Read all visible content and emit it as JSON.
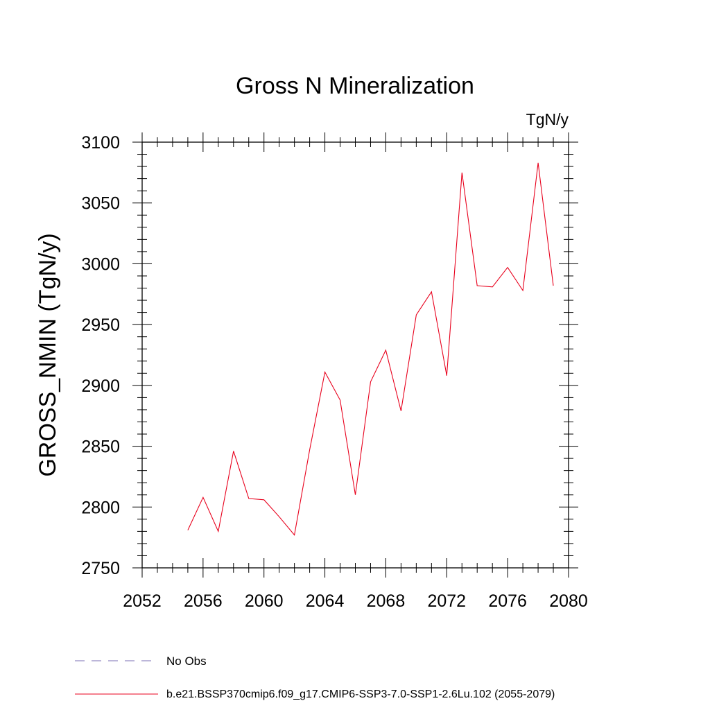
{
  "chart_data": {
    "type": "line",
    "title": "Gross N Mineralization",
    "units_label": "TgN/y",
    "ylabel": "GROSS_NMIN  (TgN/y)",
    "xlabel": "",
    "xlim": [
      2052,
      2080
    ],
    "ylim": [
      2750,
      3100
    ],
    "x_ticks": [
      2052,
      2056,
      2060,
      2064,
      2068,
      2072,
      2076,
      2080
    ],
    "x_tick_labels": [
      "2052",
      "2056",
      "2060",
      "2064",
      "2068",
      "2072",
      "2076",
      "2080"
    ],
    "y_ticks": [
      2750,
      2800,
      2850,
      2900,
      2950,
      3000,
      3050,
      3100
    ],
    "y_tick_labels": [
      "2750",
      "2800",
      "2850",
      "2900",
      "2950",
      "3000",
      "3050",
      "3100"
    ],
    "grid": false,
    "legend_position": "bottom-left",
    "series": [
      {
        "name": "No Obs",
        "color": "#7b6fb5",
        "dash": "dashed",
        "x": [],
        "values": []
      },
      {
        "name": "b.e21.BSSP370cmip6.f09_g17.CMIP6-SSP3-7.0-SSP1-2.6Lu.102 (2055-2079)",
        "color": "#e8001c",
        "dash": "solid",
        "x": [
          2055,
          2056,
          2057,
          2058,
          2059,
          2060,
          2061,
          2062,
          2063,
          2064,
          2065,
          2066,
          2067,
          2068,
          2069,
          2070,
          2071,
          2072,
          2073,
          2074,
          2075,
          2076,
          2077,
          2078,
          2079
        ],
        "values": [
          2781,
          2808,
          2780,
          2846,
          2807,
          2806,
          2792,
          2777,
          2847,
          2911,
          2888,
          2810,
          2903,
          2929,
          2879,
          2958,
          2977,
          2908,
          3075,
          2982,
          2981,
          2997,
          2978,
          3083,
          2982
        ]
      }
    ]
  }
}
